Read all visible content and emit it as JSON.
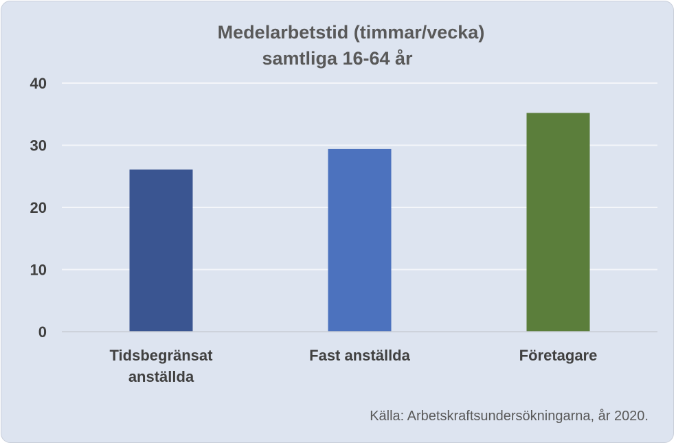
{
  "chart_data": {
    "type": "bar",
    "title_lines": [
      "Medelarbetstid (timmar/vecka)",
      "samtliga 16-64 år"
    ],
    "categories": [
      [
        "Tidsbegränsat",
        "anställda"
      ],
      [
        "Fast anställda"
      ],
      [
        "Företagare"
      ]
    ],
    "values": [
      26.1,
      29.4,
      35.2
    ],
    "bar_colors": [
      "#3a5591",
      "#4c72be",
      "#5b7e3b"
    ],
    "ylim": [
      0,
      40
    ],
    "yticks": [
      0,
      10,
      20,
      30,
      40
    ],
    "grid": true,
    "xlabel": "",
    "ylabel": ""
  },
  "source_note": "Källa: Arbetskraftsundersökningarna, år 2020."
}
